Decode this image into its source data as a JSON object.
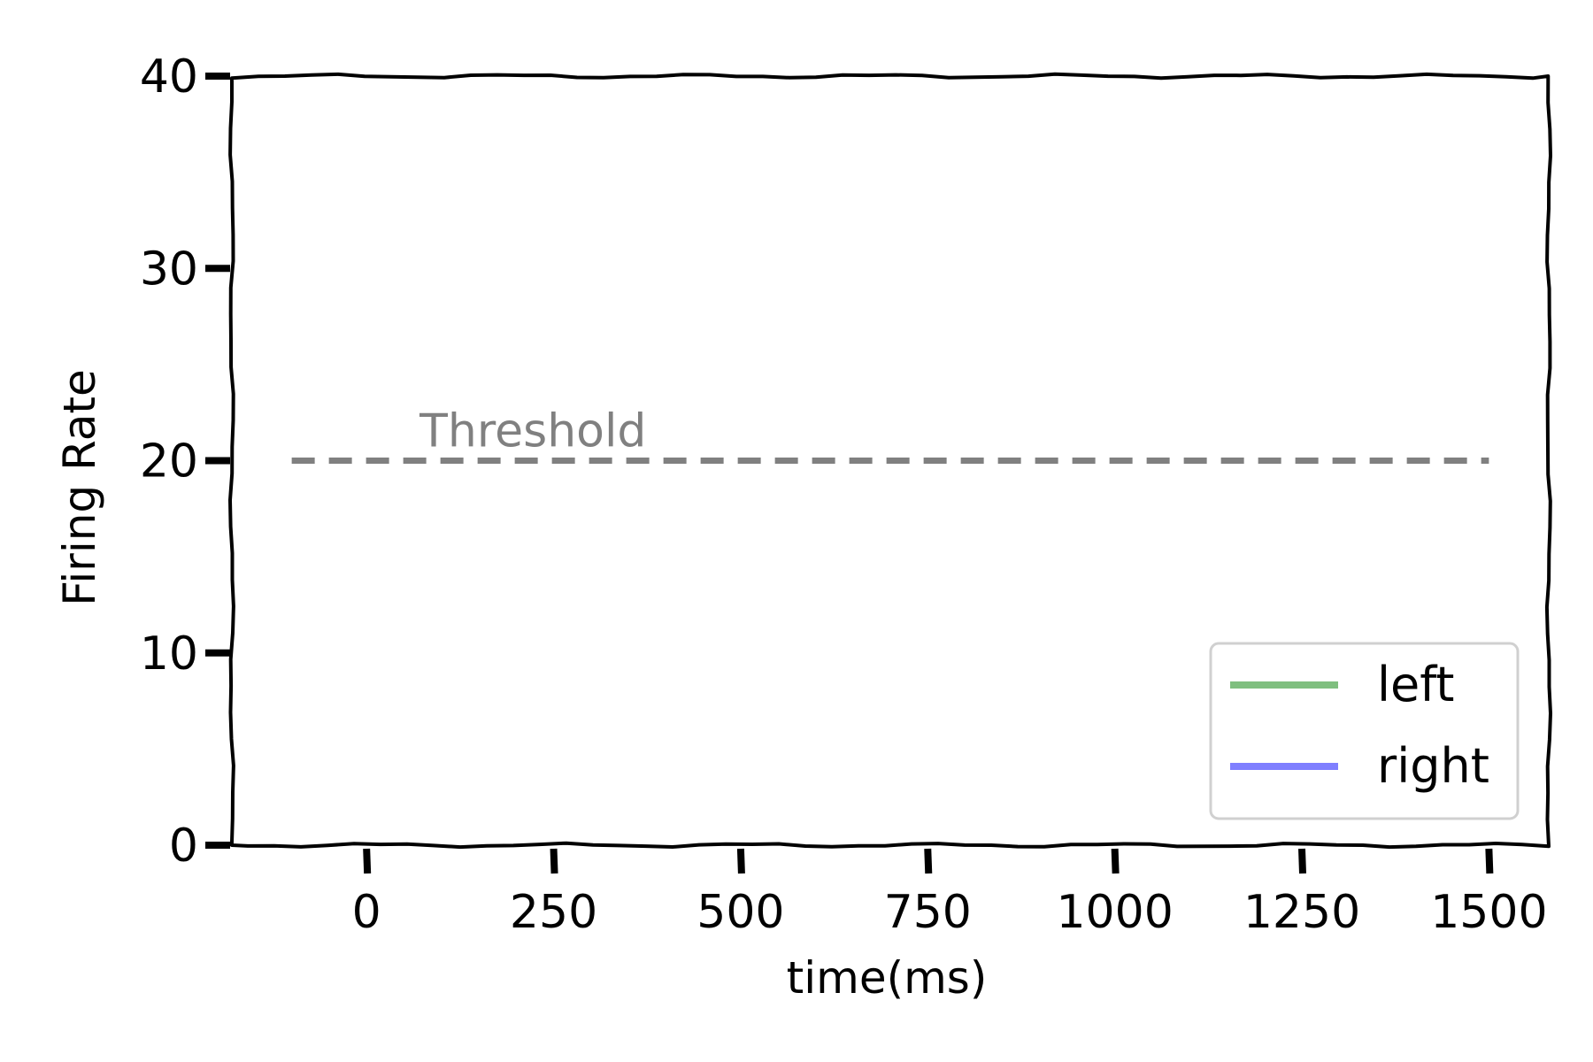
{
  "chart_data": {
    "type": "line",
    "title": "",
    "xlabel": "time(ms)",
    "ylabel": "Firing Rate",
    "xlim": [
      -180,
      1580
    ],
    "ylim": [
      0,
      40
    ],
    "xticks": [
      0,
      250,
      500,
      750,
      1000,
      1250,
      1500
    ],
    "xtick_labels": [
      "0",
      "250",
      "500",
      "750",
      "1000",
      "1250",
      "1500"
    ],
    "yticks": [
      0,
      10,
      20,
      30,
      40
    ],
    "ytick_labels": [
      "0",
      "10",
      "20",
      "30",
      "40"
    ],
    "grid": false,
    "legend_position": "lower-right",
    "series": [
      {
        "name": "left",
        "color": "#7fbf7f",
        "x": [],
        "y": []
      },
      {
        "name": "right",
        "color": "#7f7fff",
        "x": [],
        "y": []
      }
    ],
    "threshold": {
      "value": 20,
      "x_range": [
        -100,
        1500
      ],
      "label": "Threshold",
      "color": "#808080",
      "style": "dashed"
    }
  }
}
